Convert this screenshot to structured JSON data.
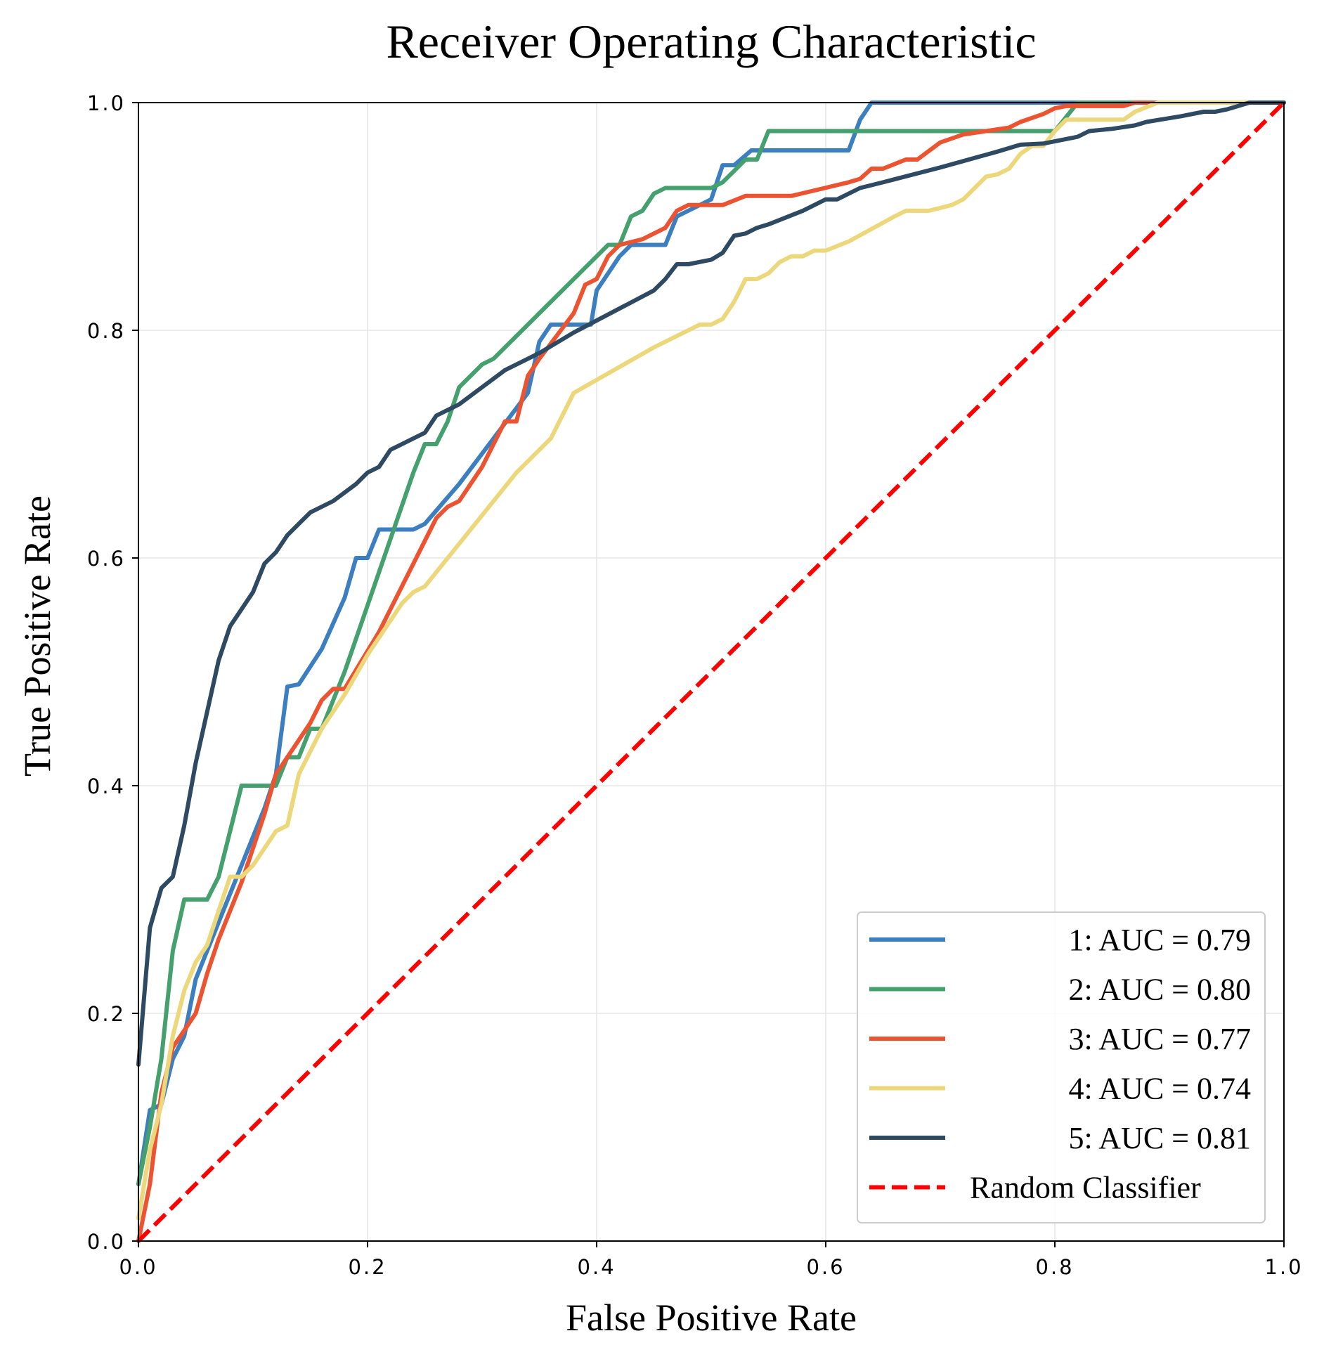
{
  "chart_data": {
    "type": "line",
    "title": "Receiver Operating Characteristic",
    "xlabel": "False Positive Rate",
    "ylabel": "True Positive Rate",
    "xlim": [
      0,
      1
    ],
    "ylim": [
      0,
      1
    ],
    "x_ticks": [
      "0.0",
      "0.2",
      "0.4",
      "0.6",
      "0.8",
      "1.0"
    ],
    "y_ticks": [
      "0.0",
      "0.2",
      "0.4",
      "0.6",
      "0.8",
      "1.0"
    ],
    "grid": true,
    "legend_position": "lower-right",
    "series": [
      {
        "name": "1: AUC = 0.79",
        "color": "#3b7fc0",
        "points": [
          [
            0,
            0.05
          ],
          [
            0.01,
            0.115
          ],
          [
            0.02,
            0.12
          ],
          [
            0.03,
            0.16
          ],
          [
            0.04,
            0.18
          ],
          [
            0.05,
            0.23
          ],
          [
            0.07,
            0.28
          ],
          [
            0.09,
            0.33
          ],
          [
            0.11,
            0.38
          ],
          [
            0.12,
            0.41
          ],
          [
            0.13,
            0.487
          ],
          [
            0.14,
            0.489
          ],
          [
            0.16,
            0.52
          ],
          [
            0.18,
            0.565
          ],
          [
            0.19,
            0.6
          ],
          [
            0.2,
            0.6
          ],
          [
            0.21,
            0.625
          ],
          [
            0.24,
            0.625
          ],
          [
            0.25,
            0.63
          ],
          [
            0.28,
            0.665
          ],
          [
            0.34,
            0.745
          ],
          [
            0.35,
            0.79
          ],
          [
            0.36,
            0.805
          ],
          [
            0.395,
            0.805
          ],
          [
            0.4,
            0.835
          ],
          [
            0.42,
            0.865
          ],
          [
            0.43,
            0.875
          ],
          [
            0.46,
            0.875
          ],
          [
            0.47,
            0.9
          ],
          [
            0.5,
            0.915
          ],
          [
            0.51,
            0.945
          ],
          [
            0.52,
            0.945
          ],
          [
            0.535,
            0.958
          ],
          [
            0.62,
            0.958
          ],
          [
            0.63,
            0.985
          ],
          [
            0.64,
            1.0
          ],
          [
            1.0,
            1.0
          ]
        ]
      },
      {
        "name": "2: AUC = 0.80",
        "color": "#44a06d",
        "points": [
          [
            0,
            0.05
          ],
          [
            0.01,
            0.1
          ],
          [
            0.02,
            0.16
          ],
          [
            0.03,
            0.255
          ],
          [
            0.04,
            0.3
          ],
          [
            0.06,
            0.3
          ],
          [
            0.07,
            0.32
          ],
          [
            0.09,
            0.4
          ],
          [
            0.12,
            0.4
          ],
          [
            0.13,
            0.425
          ],
          [
            0.14,
            0.425
          ],
          [
            0.15,
            0.45
          ],
          [
            0.16,
            0.45
          ],
          [
            0.17,
            0.475
          ],
          [
            0.18,
            0.5
          ],
          [
            0.24,
            0.675
          ],
          [
            0.25,
            0.7
          ],
          [
            0.26,
            0.7
          ],
          [
            0.27,
            0.72
          ],
          [
            0.28,
            0.75
          ],
          [
            0.3,
            0.77
          ],
          [
            0.31,
            0.775
          ],
          [
            0.4,
            0.865
          ],
          [
            0.41,
            0.875
          ],
          [
            0.42,
            0.875
          ],
          [
            0.43,
            0.9
          ],
          [
            0.44,
            0.905
          ],
          [
            0.45,
            0.92
          ],
          [
            0.46,
            0.925
          ],
          [
            0.5,
            0.925
          ],
          [
            0.51,
            0.93
          ],
          [
            0.53,
            0.95
          ],
          [
            0.54,
            0.95
          ],
          [
            0.55,
            0.975
          ],
          [
            0.8,
            0.975
          ],
          [
            0.82,
            1.0
          ],
          [
            1.0,
            1.0
          ]
        ]
      },
      {
        "name": "3: AUC = 0.77",
        "color": "#ec5431",
        "points": [
          [
            0,
            0.0
          ],
          [
            0.01,
            0.05
          ],
          [
            0.02,
            0.13
          ],
          [
            0.03,
            0.17
          ],
          [
            0.04,
            0.185
          ],
          [
            0.05,
            0.2
          ],
          [
            0.06,
            0.235
          ],
          [
            0.07,
            0.265
          ],
          [
            0.09,
            0.315
          ],
          [
            0.11,
            0.375
          ],
          [
            0.12,
            0.41
          ],
          [
            0.13,
            0.425
          ],
          [
            0.14,
            0.44
          ],
          [
            0.15,
            0.455
          ],
          [
            0.16,
            0.475
          ],
          [
            0.17,
            0.485
          ],
          [
            0.18,
            0.485
          ],
          [
            0.21,
            0.535
          ],
          [
            0.26,
            0.635
          ],
          [
            0.27,
            0.645
          ],
          [
            0.28,
            0.65
          ],
          [
            0.29,
            0.665
          ],
          [
            0.3,
            0.68
          ],
          [
            0.32,
            0.72
          ],
          [
            0.33,
            0.72
          ],
          [
            0.34,
            0.76
          ],
          [
            0.35,
            0.775
          ],
          [
            0.38,
            0.815
          ],
          [
            0.39,
            0.84
          ],
          [
            0.4,
            0.845
          ],
          [
            0.41,
            0.865
          ],
          [
            0.42,
            0.875
          ],
          [
            0.44,
            0.88
          ],
          [
            0.45,
            0.885
          ],
          [
            0.46,
            0.89
          ],
          [
            0.47,
            0.905
          ],
          [
            0.48,
            0.91
          ],
          [
            0.51,
            0.91
          ],
          [
            0.53,
            0.918
          ],
          [
            0.57,
            0.918
          ],
          [
            0.62,
            0.93
          ],
          [
            0.63,
            0.933
          ],
          [
            0.64,
            0.942
          ],
          [
            0.65,
            0.942
          ],
          [
            0.67,
            0.95
          ],
          [
            0.68,
            0.95
          ],
          [
            0.7,
            0.965
          ],
          [
            0.72,
            0.972
          ],
          [
            0.76,
            0.978
          ],
          [
            0.77,
            0.983
          ],
          [
            0.79,
            0.99
          ],
          [
            0.8,
            0.995
          ],
          [
            0.81,
            0.997
          ],
          [
            0.86,
            0.997
          ],
          [
            0.87,
            1.0
          ],
          [
            1.0,
            1.0
          ]
        ]
      },
      {
        "name": "4: AUC = 0.74",
        "color": "#ecd77b",
        "points": [
          [
            0,
            0.02
          ],
          [
            0.01,
            0.08
          ],
          [
            0.02,
            0.12
          ],
          [
            0.03,
            0.18
          ],
          [
            0.04,
            0.22
          ],
          [
            0.05,
            0.245
          ],
          [
            0.06,
            0.26
          ],
          [
            0.08,
            0.32
          ],
          [
            0.09,
            0.32
          ],
          [
            0.1,
            0.33
          ],
          [
            0.11,
            0.345
          ],
          [
            0.12,
            0.36
          ],
          [
            0.13,
            0.365
          ],
          [
            0.14,
            0.41
          ],
          [
            0.16,
            0.45
          ],
          [
            0.18,
            0.48
          ],
          [
            0.2,
            0.515
          ],
          [
            0.23,
            0.56
          ],
          [
            0.24,
            0.57
          ],
          [
            0.25,
            0.575
          ],
          [
            0.27,
            0.6
          ],
          [
            0.33,
            0.675
          ],
          [
            0.35,
            0.695
          ],
          [
            0.36,
            0.705
          ],
          [
            0.38,
            0.745
          ],
          [
            0.45,
            0.785
          ],
          [
            0.49,
            0.805
          ],
          [
            0.5,
            0.805
          ],
          [
            0.51,
            0.81
          ],
          [
            0.52,
            0.825
          ],
          [
            0.53,
            0.845
          ],
          [
            0.54,
            0.845
          ],
          [
            0.55,
            0.85
          ],
          [
            0.56,
            0.86
          ],
          [
            0.57,
            0.865
          ],
          [
            0.58,
            0.865
          ],
          [
            0.59,
            0.87
          ],
          [
            0.6,
            0.87
          ],
          [
            0.62,
            0.878
          ],
          [
            0.66,
            0.9
          ],
          [
            0.67,
            0.905
          ],
          [
            0.69,
            0.905
          ],
          [
            0.71,
            0.91
          ],
          [
            0.72,
            0.915
          ],
          [
            0.74,
            0.935
          ],
          [
            0.75,
            0.937
          ],
          [
            0.76,
            0.942
          ],
          [
            0.77,
            0.955
          ],
          [
            0.78,
            0.962
          ],
          [
            0.79,
            0.962
          ],
          [
            0.8,
            0.975
          ],
          [
            0.81,
            0.985
          ],
          [
            0.86,
            0.985
          ],
          [
            0.87,
            0.992
          ],
          [
            0.89,
            1.0
          ],
          [
            1.0,
            1.0
          ]
        ]
      },
      {
        "name": "5: AUC = 0.81",
        "color": "#2e4a62",
        "points": [
          [
            0,
            0.155
          ],
          [
            0.01,
            0.275
          ],
          [
            0.02,
            0.31
          ],
          [
            0.03,
            0.32
          ],
          [
            0.04,
            0.365
          ],
          [
            0.05,
            0.42
          ],
          [
            0.07,
            0.51
          ],
          [
            0.08,
            0.54
          ],
          [
            0.09,
            0.555
          ],
          [
            0.1,
            0.57
          ],
          [
            0.11,
            0.595
          ],
          [
            0.12,
            0.605
          ],
          [
            0.13,
            0.62
          ],
          [
            0.14,
            0.63
          ],
          [
            0.15,
            0.64
          ],
          [
            0.17,
            0.65
          ],
          [
            0.19,
            0.665
          ],
          [
            0.2,
            0.675
          ],
          [
            0.21,
            0.68
          ],
          [
            0.22,
            0.695
          ],
          [
            0.25,
            0.71
          ],
          [
            0.26,
            0.725
          ],
          [
            0.28,
            0.735
          ],
          [
            0.3,
            0.75
          ],
          [
            0.32,
            0.765
          ],
          [
            0.35,
            0.78
          ],
          [
            0.38,
            0.798
          ],
          [
            0.45,
            0.835
          ],
          [
            0.46,
            0.845
          ],
          [
            0.47,
            0.858
          ],
          [
            0.48,
            0.858
          ],
          [
            0.5,
            0.862
          ],
          [
            0.51,
            0.868
          ],
          [
            0.52,
            0.883
          ],
          [
            0.53,
            0.885
          ],
          [
            0.54,
            0.89
          ],
          [
            0.55,
            0.893
          ],
          [
            0.58,
            0.905
          ],
          [
            0.59,
            0.91
          ],
          [
            0.6,
            0.915
          ],
          [
            0.61,
            0.915
          ],
          [
            0.62,
            0.92
          ],
          [
            0.63,
            0.925
          ],
          [
            0.65,
            0.93
          ],
          [
            0.7,
            0.943
          ],
          [
            0.75,
            0.957
          ],
          [
            0.77,
            0.963
          ],
          [
            0.79,
            0.964
          ],
          [
            0.82,
            0.97
          ],
          [
            0.83,
            0.975
          ],
          [
            0.85,
            0.977
          ],
          [
            0.87,
            0.98
          ],
          [
            0.88,
            0.983
          ],
          [
            0.91,
            0.988
          ],
          [
            0.93,
            0.992
          ],
          [
            0.94,
            0.992
          ],
          [
            0.95,
            0.994
          ],
          [
            0.97,
            1.0
          ],
          [
            1.0,
            1.0
          ]
        ]
      },
      {
        "name": "Random Classifier",
        "color": "#ff0000",
        "dashed": true,
        "points": [
          [
            0,
            0
          ],
          [
            1,
            1
          ]
        ]
      }
    ]
  }
}
